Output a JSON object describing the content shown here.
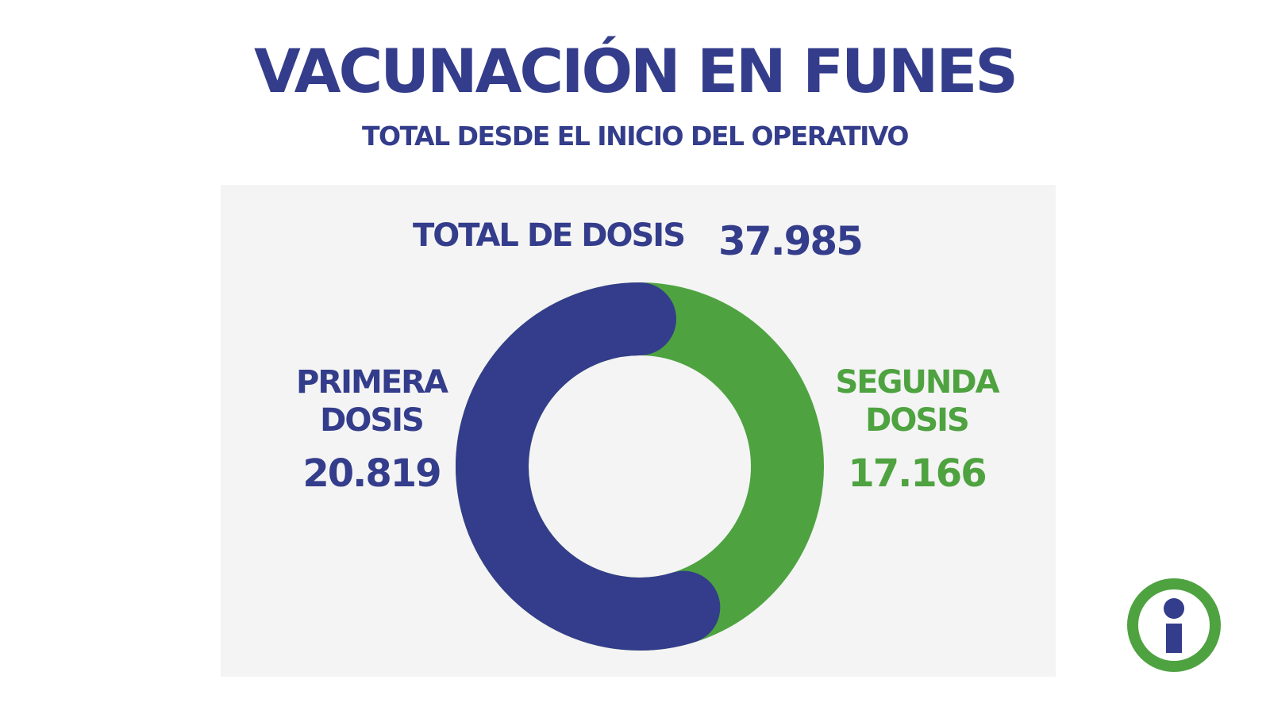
{
  "header": {
    "title": "VACUNACIÓN EN FUNES",
    "subtitle": "TOTAL DESDE EL INICIO DEL OPERATIVO"
  },
  "colors": {
    "primary": "#343d8b",
    "secondary": "#4ea340",
    "panel": "#f4f4f4",
    "background": "#ffffff"
  },
  "chart_data": {
    "type": "pie",
    "total_label": "TOTAL DE DOSIS",
    "total_value": "37.985",
    "total": 37985,
    "slices": [
      {
        "label_line1": "PRIMERA",
        "label_line2": "DOSIS",
        "display_value": "20.819",
        "value": 20819,
        "color": "#343d8b"
      },
      {
        "label_line1": "SEGUNDA",
        "label_line2": "DOSIS",
        "display_value": "17.166",
        "value": 17166,
        "color": "#4ea340"
      }
    ]
  },
  "badge": {
    "icon": "info-icon",
    "ring_color": "#4ea340",
    "glyph_color": "#343d8b"
  }
}
